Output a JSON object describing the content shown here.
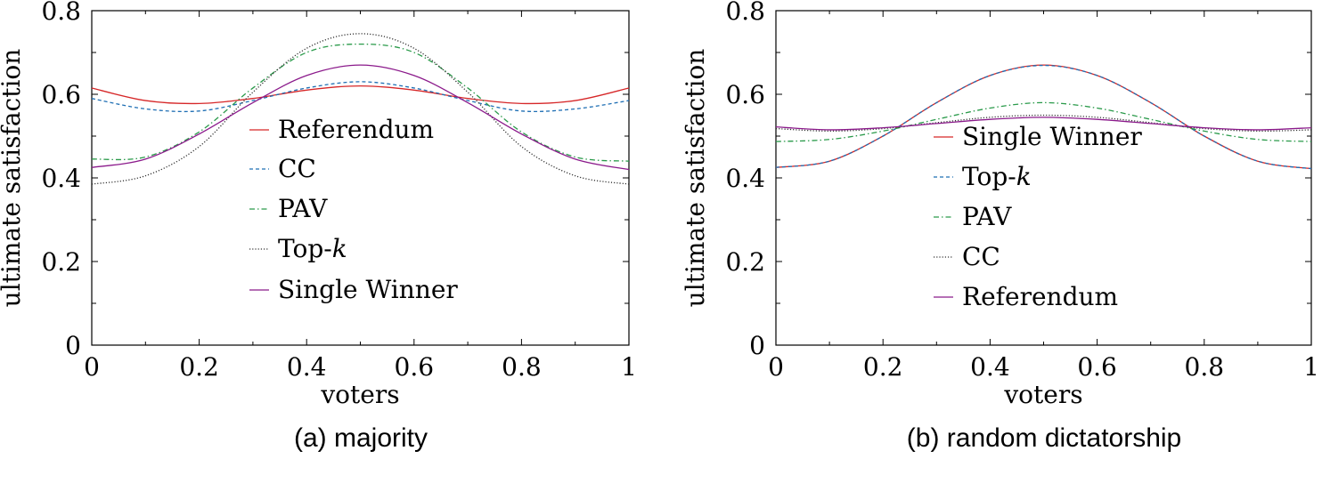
{
  "chart_data": [
    {
      "type": "line",
      "caption": "(a) majority",
      "xlabel": "voters",
      "ylabel": "ultimate satisfaction",
      "xlim": [
        0,
        1
      ],
      "ylim": [
        0,
        0.8
      ],
      "xticks": [
        "0",
        "0.2",
        "0.4",
        "0.6",
        "0.8",
        "1"
      ],
      "yticks": [
        "0",
        "0.2",
        "0.4",
        "0.6",
        "0.8"
      ],
      "grid": false,
      "legend_position": "center",
      "x": [
        0,
        0.1,
        0.2,
        0.3,
        0.4,
        0.5,
        0.6,
        0.7,
        0.8,
        0.9,
        1
      ],
      "series": [
        {
          "name": "Referendum",
          "color": "#d62728",
          "style": "solid",
          "values": [
            0.615,
            0.585,
            0.578,
            0.59,
            0.61,
            0.62,
            0.61,
            0.59,
            0.578,
            0.585,
            0.615
          ]
        },
        {
          "name": "CC",
          "color": "#1f6fb4",
          "style": "dashed",
          "values": [
            0.59,
            0.565,
            0.56,
            0.585,
            0.615,
            0.63,
            0.615,
            0.585,
            0.56,
            0.565,
            0.585
          ]
        },
        {
          "name": "PAV",
          "color": "#2a9a4a",
          "style": "dashdot",
          "values": [
            0.445,
            0.45,
            0.51,
            0.615,
            0.7,
            0.72,
            0.7,
            0.615,
            0.51,
            0.45,
            0.44
          ]
        },
        {
          "name": "Top-k",
          "color": "#333333",
          "style": "dotted",
          "values": [
            0.385,
            0.405,
            0.475,
            0.605,
            0.71,
            0.745,
            0.71,
            0.605,
            0.475,
            0.405,
            0.385
          ]
        },
        {
          "name": "Single Winner",
          "color": "#8b1a8b",
          "style": "solid",
          "values": [
            0.425,
            0.445,
            0.505,
            0.58,
            0.645,
            0.67,
            0.645,
            0.58,
            0.505,
            0.445,
            0.42
          ]
        }
      ]
    },
    {
      "type": "line",
      "caption": "(b) random dictatorship",
      "xlabel": "voters",
      "ylabel": "ultimate satisfaction",
      "xlim": [
        0,
        1
      ],
      "ylim": [
        0,
        0.8
      ],
      "xticks": [
        "0",
        "0.2",
        "0.4",
        "0.6",
        "0.8",
        "1"
      ],
      "yticks": [
        "0",
        "0.2",
        "0.4",
        "0.6",
        "0.8"
      ],
      "grid": false,
      "legend_position": "center",
      "x": [
        0,
        0.1,
        0.2,
        0.3,
        0.4,
        0.5,
        0.6,
        0.7,
        0.8,
        0.9,
        1
      ],
      "series": [
        {
          "name": "Single Winner",
          "color": "#d62728",
          "style": "solid",
          "values": [
            0.425,
            0.44,
            0.5,
            0.58,
            0.645,
            0.67,
            0.645,
            0.58,
            0.5,
            0.44,
            0.422
          ]
        },
        {
          "name": "Top-k",
          "color": "#1f6fb4",
          "style": "dashed",
          "values": [
            0.425,
            0.44,
            0.5,
            0.58,
            0.645,
            0.669,
            0.645,
            0.58,
            0.5,
            0.44,
            0.422
          ]
        },
        {
          "name": "PAV",
          "color": "#2a9a4a",
          "style": "dashdot",
          "values": [
            0.487,
            0.492,
            0.512,
            0.54,
            0.567,
            0.58,
            0.567,
            0.54,
            0.512,
            0.492,
            0.487
          ]
        },
        {
          "name": "CC",
          "color": "#333333",
          "style": "dotted",
          "values": [
            0.518,
            0.512,
            0.518,
            0.532,
            0.545,
            0.55,
            0.545,
            0.532,
            0.518,
            0.512,
            0.515
          ]
        },
        {
          "name": "Referendum",
          "color": "#8b1a8b",
          "style": "solid",
          "values": [
            0.522,
            0.515,
            0.52,
            0.53,
            0.54,
            0.545,
            0.54,
            0.53,
            0.52,
            0.515,
            0.52
          ]
        }
      ]
    }
  ]
}
